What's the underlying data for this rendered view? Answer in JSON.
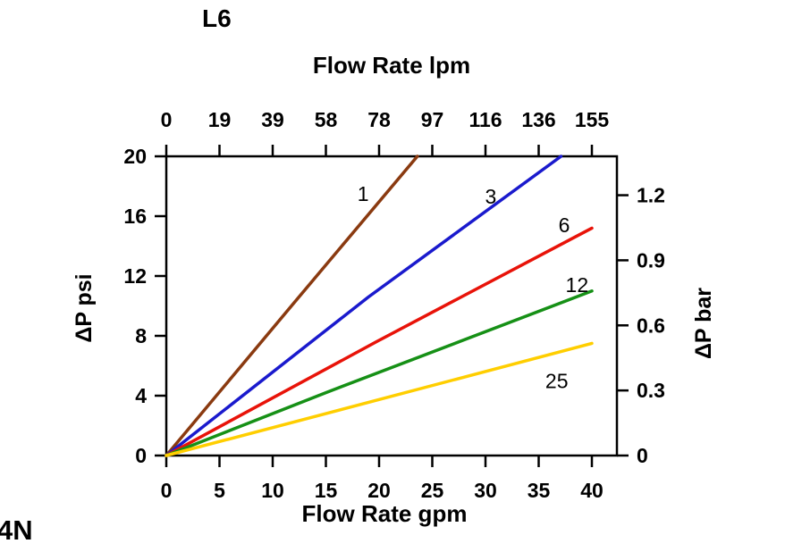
{
  "page": {
    "corner_text": "4N"
  },
  "chart_data": {
    "type": "line",
    "title": "L6",
    "x_axis_bottom": {
      "label": "Flow Rate gpm",
      "ticks": [
        0,
        5,
        10,
        15,
        20,
        25,
        30,
        35,
        40
      ],
      "range": [
        0,
        42.4
      ]
    },
    "x_axis_top": {
      "label": "Flow Rate lpm",
      "tick_labels": [
        "0",
        "19",
        "39",
        "58",
        "78",
        "97",
        "116",
        "136",
        "155"
      ]
    },
    "y_axis_left": {
      "label": "ΔP psi",
      "ticks": [
        0,
        4,
        8,
        12,
        16,
        20
      ],
      "range": [
        0,
        20
      ]
    },
    "y_axis_right": {
      "label": "ΔP bar",
      "tick_labels": [
        "0",
        "0.3",
        "0.6",
        "0.9",
        "1.2"
      ],
      "tick_psi": [
        0,
        4.35,
        8.7,
        13.05,
        17.4
      ]
    },
    "grid": false,
    "series": [
      {
        "name": "1",
        "color": "#8a3a10",
        "points": [
          [
            0,
            0
          ],
          [
            12,
            10.2
          ],
          [
            23.6,
            20
          ]
        ],
        "label": {
          "x": 18.5,
          "y": 17.5
        }
      },
      {
        "name": "3",
        "color": "#1a1acd",
        "points": [
          [
            0,
            0
          ],
          [
            19,
            10.6
          ],
          [
            37.1,
            20
          ]
        ],
        "label": {
          "x": 30.5,
          "y": 17.3
        }
      },
      {
        "name": "6",
        "color": "#e81309",
        "points": [
          [
            0,
            0
          ],
          [
            20,
            7.7
          ],
          [
            40,
            15.2
          ]
        ],
        "label": {
          "x": 37.4,
          "y": 15.4
        }
      },
      {
        "name": "12",
        "color": "#169016",
        "points": [
          [
            0,
            0
          ],
          [
            15,
            4.2
          ],
          [
            40,
            11.0
          ]
        ],
        "label": {
          "x": 38.6,
          "y": 11.4
        }
      },
      {
        "name": "25",
        "color": "#ffce00",
        "points": [
          [
            0,
            0
          ],
          [
            15,
            2.8
          ],
          [
            40,
            7.5
          ]
        ],
        "label": {
          "x": 36.7,
          "y": 5.0
        }
      }
    ]
  }
}
